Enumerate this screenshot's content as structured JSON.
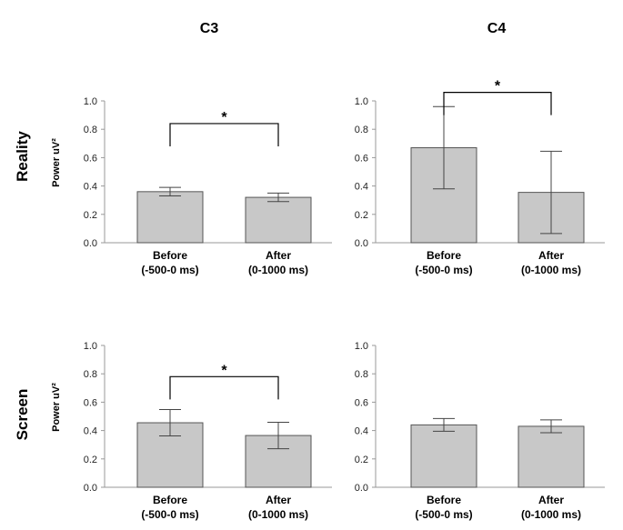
{
  "columns": [
    "C3",
    "C4"
  ],
  "rows": [
    "Reality",
    "Screen"
  ],
  "colors": {
    "bar": "#c8c8c8",
    "bar_stroke": "#555555",
    "axis": "#999999",
    "bracket": "#000000"
  },
  "chart_data": [
    {
      "type": "bar",
      "column": "C3",
      "row": "Reality",
      "categories": [
        [
          "Before",
          "(-500-0 ms)"
        ],
        [
          "After",
          "(0-1000 ms)"
        ]
      ],
      "values": [
        0.36,
        0.32
      ],
      "errors": [
        0.03,
        0.03
      ],
      "ylabel": "Power uV²",
      "ylim": [
        0,
        1.0
      ],
      "yticks": [
        "0.0",
        "0.2",
        "0.4",
        "0.6",
        "0.8",
        "1.0"
      ],
      "significance": {
        "label": "*",
        "bracket_y": 0.84
      }
    },
    {
      "type": "bar",
      "column": "C4",
      "row": "Reality",
      "categories": [
        [
          "Before",
          "(-500-0 ms)"
        ],
        [
          "After",
          "(0-1000 ms)"
        ]
      ],
      "values": [
        0.67,
        0.355
      ],
      "errors": [
        0.29,
        0.29
      ],
      "ylabel": "",
      "ylim": [
        0,
        1.0
      ],
      "yticks": [
        "0.0",
        "0.2",
        "0.4",
        "0.6",
        "0.8",
        "1.0"
      ],
      "significance": {
        "label": "*",
        "bracket_y": 1.06
      }
    },
    {
      "type": "bar",
      "column": "C3",
      "row": "Screen",
      "categories": [
        [
          "Before",
          "(-500-0 ms)"
        ],
        [
          "After",
          "(0-1000 ms)"
        ]
      ],
      "values": [
        0.455,
        0.365
      ],
      "errors": [
        0.093,
        0.093
      ],
      "ylabel": "Power uV²",
      "ylim": [
        0,
        1.0
      ],
      "yticks": [
        "0.0",
        "0.2",
        "0.4",
        "0.6",
        "0.8",
        "1.0"
      ],
      "significance": {
        "label": "*",
        "bracket_y": 0.78
      }
    },
    {
      "type": "bar",
      "column": "C4",
      "row": "Screen",
      "categories": [
        [
          "Before",
          "(-500-0 ms)"
        ],
        [
          "After",
          "(0-1000 ms)"
        ]
      ],
      "values": [
        0.44,
        0.43
      ],
      "errors": [
        0.045,
        0.045
      ],
      "ylabel": "",
      "ylim": [
        0,
        1.0
      ],
      "yticks": [
        "0.0",
        "0.2",
        "0.4",
        "0.6",
        "0.8",
        "1.0"
      ],
      "significance": null
    }
  ]
}
